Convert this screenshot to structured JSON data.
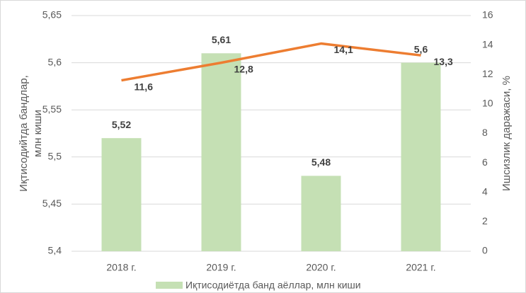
{
  "chart_data": {
    "type": "bar_line",
    "categories": [
      "2018 г.",
      "2019 г.",
      "2020 г.",
      "2021 г."
    ],
    "series": [
      {
        "name": "Иқтисодиётда банд аёллар, млн киши",
        "type": "bar",
        "color": "#c5e0b4",
        "values": [
          5.52,
          5.61,
          5.48,
          5.6
        ],
        "value_labels": [
          "5,52",
          "5,61",
          "5,48",
          "5,6"
        ]
      },
      {
        "type": "line",
        "axis": "y2",
        "color": "#ed7d31",
        "values": [
          11.6,
          12.8,
          14.1,
          13.3
        ],
        "value_labels": [
          "11,6",
          "12,8",
          "14,1",
          "13,3"
        ]
      }
    ],
    "y_label": [
      "Иқтисодийтда бандлар,",
      "млн киши"
    ],
    "y2_label": "Ишсизлик даражаси, %",
    "ylim": [
      5.4,
      5.65
    ],
    "yticks": [
      {
        "value": 5.4,
        "label": "5,4"
      },
      {
        "value": 5.45,
        "label": "5,45"
      },
      {
        "value": 5.5,
        "label": "5,5"
      },
      {
        "value": 5.55,
        "label": "5,55"
      },
      {
        "value": 5.6,
        "label": "5,6"
      },
      {
        "value": 5.65,
        "label": "5,65"
      }
    ],
    "y2lim": [
      0,
      16
    ],
    "y2ticks": [
      0,
      2,
      4,
      6,
      8,
      10,
      12,
      14,
      16
    ],
    "grid": true,
    "legend": "bottom"
  }
}
